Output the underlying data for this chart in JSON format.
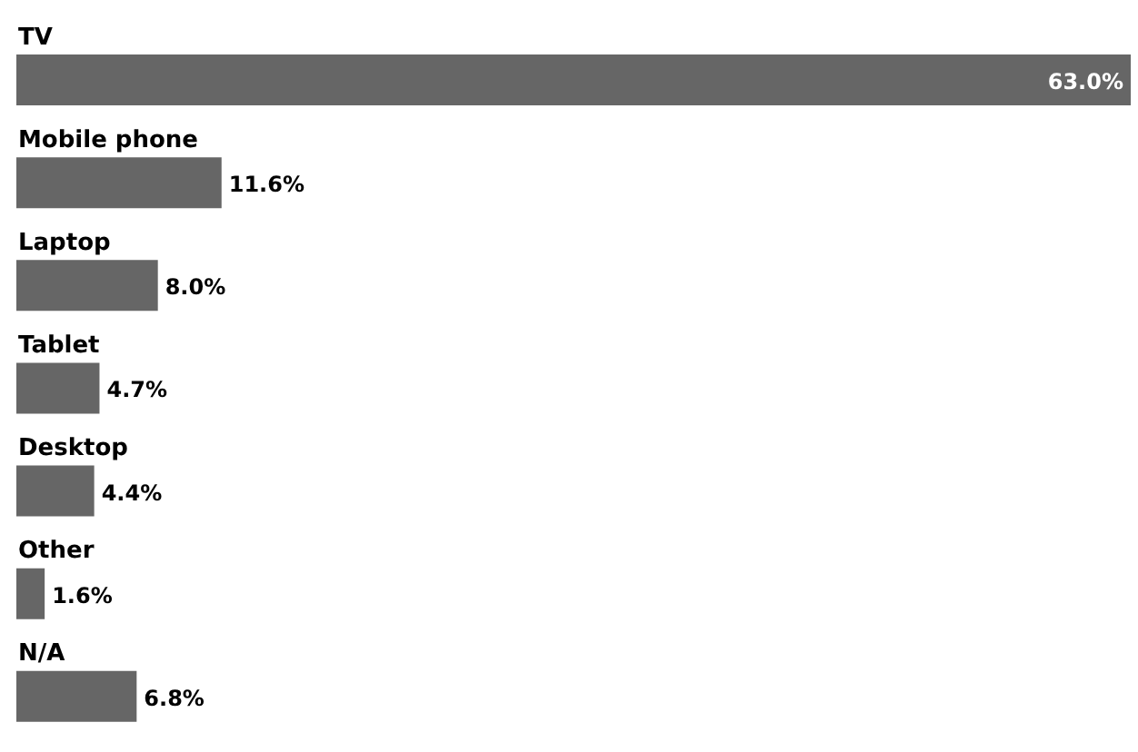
{
  "chart_data": {
    "type": "bar",
    "orientation": "horizontal",
    "categories": [
      "TV",
      "Mobile phone",
      "Laptop",
      "Tablet",
      "Desktop",
      "Other",
      "N/A"
    ],
    "values": [
      63.0,
      11.6,
      8.0,
      4.7,
      4.4,
      1.6,
      6.8
    ],
    "value_labels": [
      "63.0%",
      "11.6%",
      "8.0%",
      "4.7%",
      "4.4%",
      "1.6%",
      "6.8%"
    ],
    "color": "#666666",
    "grid": false,
    "legend": false
  }
}
